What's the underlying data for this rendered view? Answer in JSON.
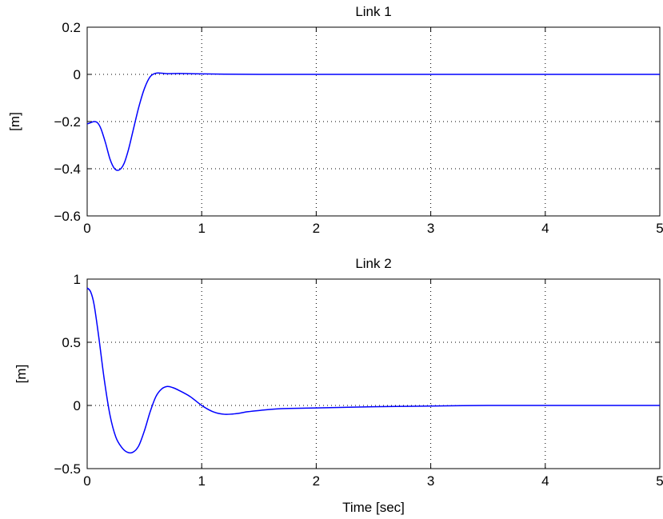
{
  "chart_data": [
    {
      "type": "line",
      "title": "Link 1",
      "xlabel": "",
      "ylabel": "[m]",
      "xlim": [
        0,
        5
      ],
      "ylim": [
        -0.6,
        0.2
      ],
      "xticks": [
        0,
        1,
        2,
        3,
        4,
        5
      ],
      "xtick_labels": [
        "0",
        "1",
        "2",
        "3",
        "4",
        "5"
      ],
      "yticks": [
        -0.6,
        -0.4,
        -0.2,
        0,
        0.2
      ],
      "ytick_labels": [
        "−0.6",
        "−0.4",
        "−0.2",
        "0",
        "0.2"
      ],
      "grid": true,
      "series_color": "#0000ff",
      "series": [
        {
          "x": [
            0,
            0.03,
            0.06,
            0.09,
            0.12,
            0.16,
            0.2,
            0.24,
            0.28,
            0.32,
            0.36,
            0.4,
            0.45,
            0.5,
            0.55,
            0.6,
            0.65,
            0.7,
            0.8,
            0.9,
            1.0,
            1.2,
            1.5,
            2.0,
            3.0,
            4.0,
            5.0
          ],
          "y": [
            -0.21,
            -0.205,
            -0.2,
            -0.205,
            -0.23,
            -0.29,
            -0.36,
            -0.4,
            -0.405,
            -0.38,
            -0.32,
            -0.24,
            -0.14,
            -0.06,
            -0.01,
            0.005,
            0.005,
            0.003,
            0.004,
            0.003,
            0.002,
            0.001,
            0.0,
            0.0,
            0.0,
            0.0,
            0.0
          ]
        }
      ]
    },
    {
      "type": "line",
      "title": "Link 2",
      "xlabel": "Time [sec]",
      "ylabel": "[m]",
      "xlim": [
        0,
        5
      ],
      "ylim": [
        -0.5,
        1
      ],
      "xticks": [
        0,
        1,
        2,
        3,
        4,
        5
      ],
      "xtick_labels": [
        "0",
        "1",
        "2",
        "3",
        "4",
        "5"
      ],
      "yticks": [
        -0.5,
        0,
        0.5,
        1
      ],
      "ytick_labels": [
        "−0.5",
        "0",
        "0.5",
        "1"
      ],
      "grid": true,
      "series_color": "#0000ff",
      "series": [
        {
          "x": [
            0,
            0.03,
            0.06,
            0.1,
            0.15,
            0.2,
            0.25,
            0.3,
            0.35,
            0.4,
            0.45,
            0.5,
            0.55,
            0.6,
            0.65,
            0.7,
            0.75,
            0.8,
            0.9,
            1.0,
            1.1,
            1.2,
            1.3,
            1.4,
            1.5,
            1.7,
            2.0,
            2.5,
            3.0,
            3.5,
            4.0,
            4.5,
            5.0
          ],
          "y": [
            0.93,
            0.9,
            0.8,
            0.55,
            0.2,
            -0.08,
            -0.25,
            -0.33,
            -0.37,
            -0.37,
            -0.32,
            -0.2,
            -0.05,
            0.07,
            0.13,
            0.15,
            0.14,
            0.12,
            0.07,
            0.0,
            -0.05,
            -0.07,
            -0.065,
            -0.05,
            -0.04,
            -0.025,
            -0.02,
            -0.01,
            -0.005,
            0.0,
            0.0,
            0.0,
            0.0
          ]
        }
      ]
    }
  ]
}
